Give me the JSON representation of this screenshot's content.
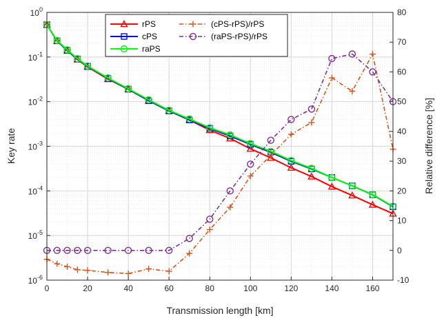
{
  "chart_data": {
    "type": "line",
    "xlabel": "Transmission length [km]",
    "ylabel_left": "Key rate",
    "ylabel_right": "Relative difference [%]",
    "xlim": [
      0,
      170
    ],
    "x_ticks": [
      0,
      20,
      40,
      60,
      80,
      100,
      120,
      140,
      160
    ],
    "left_scale": "log",
    "ylim_left": [
      1e-06,
      1
    ],
    "left_ticks": [
      {
        "base": "10",
        "exp": "0",
        "value": 1
      },
      {
        "base": "10",
        "exp": "-1",
        "value": 0.1
      },
      {
        "base": "10",
        "exp": "-2",
        "value": 0.01
      },
      {
        "base": "10",
        "exp": "-3",
        "value": 0.001
      },
      {
        "base": "10",
        "exp": "-4",
        "value": 0.0001
      },
      {
        "base": "10",
        "exp": "-5",
        "value": 1e-05
      },
      {
        "base": "10",
        "exp": "-6",
        "value": 1e-06
      }
    ],
    "ylim_right": [
      -10,
      80
    ],
    "right_ticks": [
      -10,
      0,
      10,
      20,
      30,
      40,
      50,
      60,
      70,
      80
    ],
    "grid": true,
    "legend_position": "top-center",
    "x": [
      0,
      5,
      10,
      15,
      20,
      30,
      40,
      50,
      60,
      70,
      80,
      90,
      100,
      110,
      120,
      130,
      140,
      150,
      160,
      170
    ],
    "series": [
      {
        "name": "rPS",
        "axis": "left",
        "color": "#ff0000",
        "marker": "triangle",
        "dashed": false,
        "values": [
          0.53,
          0.23,
          0.14,
          0.088,
          0.06,
          0.032,
          0.019,
          0.0105,
          0.0062,
          0.0039,
          0.0023,
          0.0015,
          0.00088,
          0.00055,
          0.00033,
          0.00021,
          0.000125,
          7.9e-05,
          4.9e-05,
          3.1e-05
        ]
      },
      {
        "name": "cPS",
        "axis": "left",
        "color": "#0000ff",
        "marker": "square",
        "dashed": false,
        "values": [
          0.53,
          0.23,
          0.14,
          0.09,
          0.062,
          0.033,
          0.019,
          0.0105,
          0.0062,
          0.0039,
          0.0025,
          0.0017,
          0.0011,
          0.00073,
          0.00046,
          0.00031,
          0.0002,
          0.00013,
          8.2e-05,
          4.4e-05
        ]
      },
      {
        "name": "raPS",
        "axis": "left",
        "color": "#00ff00",
        "marker": "circle",
        "dashed": false,
        "values": [
          0.53,
          0.235,
          0.145,
          0.092,
          0.063,
          0.034,
          0.0195,
          0.011,
          0.0064,
          0.0041,
          0.0026,
          0.0018,
          0.00115,
          0.00077,
          0.00048,
          0.00032,
          0.0002,
          0.00013,
          8.3e-05,
          4.5e-05
        ]
      },
      {
        "name": "(cPS-rPS)/rPS",
        "axis": "right",
        "color": "#d95319",
        "marker": "plus",
        "dashed": true,
        "values": [
          -3,
          -4.5,
          -5.5,
          -6.5,
          -6.7,
          -7.4,
          -7.8,
          -6.2,
          -7,
          -1,
          7,
          14.5,
          25,
          32,
          39,
          43,
          58,
          53.5,
          66,
          34
        ]
      },
      {
        "name": "(raPS-rPS)/rPS",
        "axis": "right",
        "color": "#7e2f8e",
        "marker": "circle",
        "dashed": true,
        "values": [
          0,
          0,
          0,
          0,
          0,
          0,
          0,
          0,
          0,
          4,
          10.5,
          20,
          29,
          37,
          44,
          47.5,
          64.5,
          66,
          60,
          50
        ]
      }
    ]
  }
}
